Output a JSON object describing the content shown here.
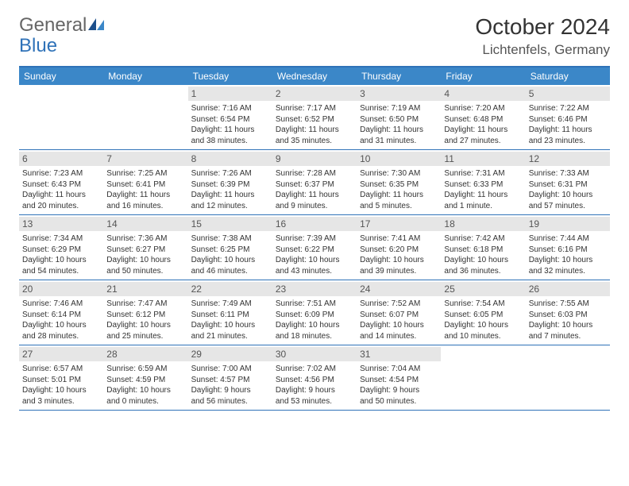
{
  "logo": {
    "general": "General",
    "blue": "Blue"
  },
  "title": "October 2024",
  "location": "Lichtenfels, Germany",
  "colors": {
    "header_bg": "#3b87c8",
    "border": "#2f72b8",
    "daynum_bg": "#e6e6e6",
    "text": "#333333",
    "background": "#ffffff"
  },
  "fonts": {
    "title_size": 28,
    "location_size": 17,
    "dayheader_size": 12,
    "daynum_size": 12,
    "info_size": 10
  },
  "day_names": [
    "Sunday",
    "Monday",
    "Tuesday",
    "Wednesday",
    "Thursday",
    "Friday",
    "Saturday"
  ],
  "weeks": [
    [
      null,
      null,
      {
        "n": "1",
        "sr": "Sunrise: 7:16 AM",
        "ss": "Sunset: 6:54 PM",
        "dl1": "Daylight: 11 hours",
        "dl2": "and 38 minutes."
      },
      {
        "n": "2",
        "sr": "Sunrise: 7:17 AM",
        "ss": "Sunset: 6:52 PM",
        "dl1": "Daylight: 11 hours",
        "dl2": "and 35 minutes."
      },
      {
        "n": "3",
        "sr": "Sunrise: 7:19 AM",
        "ss": "Sunset: 6:50 PM",
        "dl1": "Daylight: 11 hours",
        "dl2": "and 31 minutes."
      },
      {
        "n": "4",
        "sr": "Sunrise: 7:20 AM",
        "ss": "Sunset: 6:48 PM",
        "dl1": "Daylight: 11 hours",
        "dl2": "and 27 minutes."
      },
      {
        "n": "5",
        "sr": "Sunrise: 7:22 AM",
        "ss": "Sunset: 6:46 PM",
        "dl1": "Daylight: 11 hours",
        "dl2": "and 23 minutes."
      }
    ],
    [
      {
        "n": "6",
        "sr": "Sunrise: 7:23 AM",
        "ss": "Sunset: 6:43 PM",
        "dl1": "Daylight: 11 hours",
        "dl2": "and 20 minutes."
      },
      {
        "n": "7",
        "sr": "Sunrise: 7:25 AM",
        "ss": "Sunset: 6:41 PM",
        "dl1": "Daylight: 11 hours",
        "dl2": "and 16 minutes."
      },
      {
        "n": "8",
        "sr": "Sunrise: 7:26 AM",
        "ss": "Sunset: 6:39 PM",
        "dl1": "Daylight: 11 hours",
        "dl2": "and 12 minutes."
      },
      {
        "n": "9",
        "sr": "Sunrise: 7:28 AM",
        "ss": "Sunset: 6:37 PM",
        "dl1": "Daylight: 11 hours",
        "dl2": "and 9 minutes."
      },
      {
        "n": "10",
        "sr": "Sunrise: 7:30 AM",
        "ss": "Sunset: 6:35 PM",
        "dl1": "Daylight: 11 hours",
        "dl2": "and 5 minutes."
      },
      {
        "n": "11",
        "sr": "Sunrise: 7:31 AM",
        "ss": "Sunset: 6:33 PM",
        "dl1": "Daylight: 11 hours",
        "dl2": "and 1 minute."
      },
      {
        "n": "12",
        "sr": "Sunrise: 7:33 AM",
        "ss": "Sunset: 6:31 PM",
        "dl1": "Daylight: 10 hours",
        "dl2": "and 57 minutes."
      }
    ],
    [
      {
        "n": "13",
        "sr": "Sunrise: 7:34 AM",
        "ss": "Sunset: 6:29 PM",
        "dl1": "Daylight: 10 hours",
        "dl2": "and 54 minutes."
      },
      {
        "n": "14",
        "sr": "Sunrise: 7:36 AM",
        "ss": "Sunset: 6:27 PM",
        "dl1": "Daylight: 10 hours",
        "dl2": "and 50 minutes."
      },
      {
        "n": "15",
        "sr": "Sunrise: 7:38 AM",
        "ss": "Sunset: 6:25 PM",
        "dl1": "Daylight: 10 hours",
        "dl2": "and 46 minutes."
      },
      {
        "n": "16",
        "sr": "Sunrise: 7:39 AM",
        "ss": "Sunset: 6:22 PM",
        "dl1": "Daylight: 10 hours",
        "dl2": "and 43 minutes."
      },
      {
        "n": "17",
        "sr": "Sunrise: 7:41 AM",
        "ss": "Sunset: 6:20 PM",
        "dl1": "Daylight: 10 hours",
        "dl2": "and 39 minutes."
      },
      {
        "n": "18",
        "sr": "Sunrise: 7:42 AM",
        "ss": "Sunset: 6:18 PM",
        "dl1": "Daylight: 10 hours",
        "dl2": "and 36 minutes."
      },
      {
        "n": "19",
        "sr": "Sunrise: 7:44 AM",
        "ss": "Sunset: 6:16 PM",
        "dl1": "Daylight: 10 hours",
        "dl2": "and 32 minutes."
      }
    ],
    [
      {
        "n": "20",
        "sr": "Sunrise: 7:46 AM",
        "ss": "Sunset: 6:14 PM",
        "dl1": "Daylight: 10 hours",
        "dl2": "and 28 minutes."
      },
      {
        "n": "21",
        "sr": "Sunrise: 7:47 AM",
        "ss": "Sunset: 6:12 PM",
        "dl1": "Daylight: 10 hours",
        "dl2": "and 25 minutes."
      },
      {
        "n": "22",
        "sr": "Sunrise: 7:49 AM",
        "ss": "Sunset: 6:11 PM",
        "dl1": "Daylight: 10 hours",
        "dl2": "and 21 minutes."
      },
      {
        "n": "23",
        "sr": "Sunrise: 7:51 AM",
        "ss": "Sunset: 6:09 PM",
        "dl1": "Daylight: 10 hours",
        "dl2": "and 18 minutes."
      },
      {
        "n": "24",
        "sr": "Sunrise: 7:52 AM",
        "ss": "Sunset: 6:07 PM",
        "dl1": "Daylight: 10 hours",
        "dl2": "and 14 minutes."
      },
      {
        "n": "25",
        "sr": "Sunrise: 7:54 AM",
        "ss": "Sunset: 6:05 PM",
        "dl1": "Daylight: 10 hours",
        "dl2": "and 10 minutes."
      },
      {
        "n": "26",
        "sr": "Sunrise: 7:55 AM",
        "ss": "Sunset: 6:03 PM",
        "dl1": "Daylight: 10 hours",
        "dl2": "and 7 minutes."
      }
    ],
    [
      {
        "n": "27",
        "sr": "Sunrise: 6:57 AM",
        "ss": "Sunset: 5:01 PM",
        "dl1": "Daylight: 10 hours",
        "dl2": "and 3 minutes."
      },
      {
        "n": "28",
        "sr": "Sunrise: 6:59 AM",
        "ss": "Sunset: 4:59 PM",
        "dl1": "Daylight: 10 hours",
        "dl2": "and 0 minutes."
      },
      {
        "n": "29",
        "sr": "Sunrise: 7:00 AM",
        "ss": "Sunset: 4:57 PM",
        "dl1": "Daylight: 9 hours",
        "dl2": "and 56 minutes."
      },
      {
        "n": "30",
        "sr": "Sunrise: 7:02 AM",
        "ss": "Sunset: 4:56 PM",
        "dl1": "Daylight: 9 hours",
        "dl2": "and 53 minutes."
      },
      {
        "n": "31",
        "sr": "Sunrise: 7:04 AM",
        "ss": "Sunset: 4:54 PM",
        "dl1": "Daylight: 9 hours",
        "dl2": "and 50 minutes."
      },
      null,
      null
    ]
  ]
}
